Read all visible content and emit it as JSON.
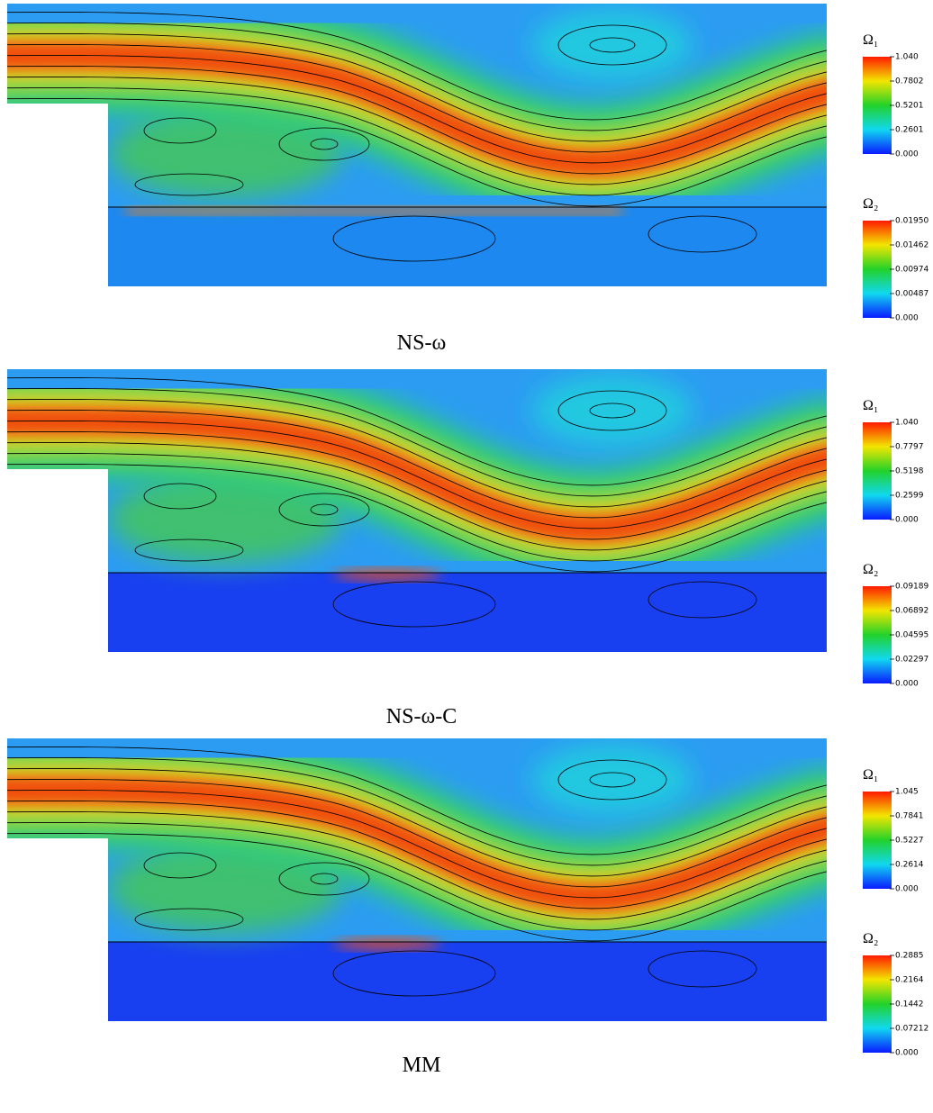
{
  "panels": [
    {
      "caption": "NS-ω",
      "colorbars": [
        {
          "label": "Ω₁",
          "ticks": [
            "1.040",
            "0.7802",
            "0.5201",
            "0.2601",
            "0.000"
          ]
        },
        {
          "label": "Ω₂",
          "ticks": [
            "0.01950",
            "0.01462",
            "0.00974",
            "0.00487",
            "0.000"
          ]
        }
      ]
    },
    {
      "caption": "NS-ω-C",
      "colorbars": [
        {
          "label": "Ω₁",
          "ticks": [
            "1.040",
            "0.7797",
            "0.5198",
            "0.2599",
            "0.000"
          ]
        },
        {
          "label": "Ω₂",
          "ticks": [
            "0.09189",
            "0.06892",
            "0.04595",
            "0.02297",
            "0.000"
          ]
        }
      ]
    },
    {
      "caption": "MM",
      "colorbars": [
        {
          "label": "Ω₁",
          "ticks": [
            "1.045",
            "0.7841",
            "0.5227",
            "0.2614",
            "0.000"
          ]
        },
        {
          "label": "Ω₂",
          "ticks": [
            "0.2885",
            "0.2164",
            "0.1442",
            "0.07212",
            "0.000"
          ]
        }
      ]
    }
  ]
}
